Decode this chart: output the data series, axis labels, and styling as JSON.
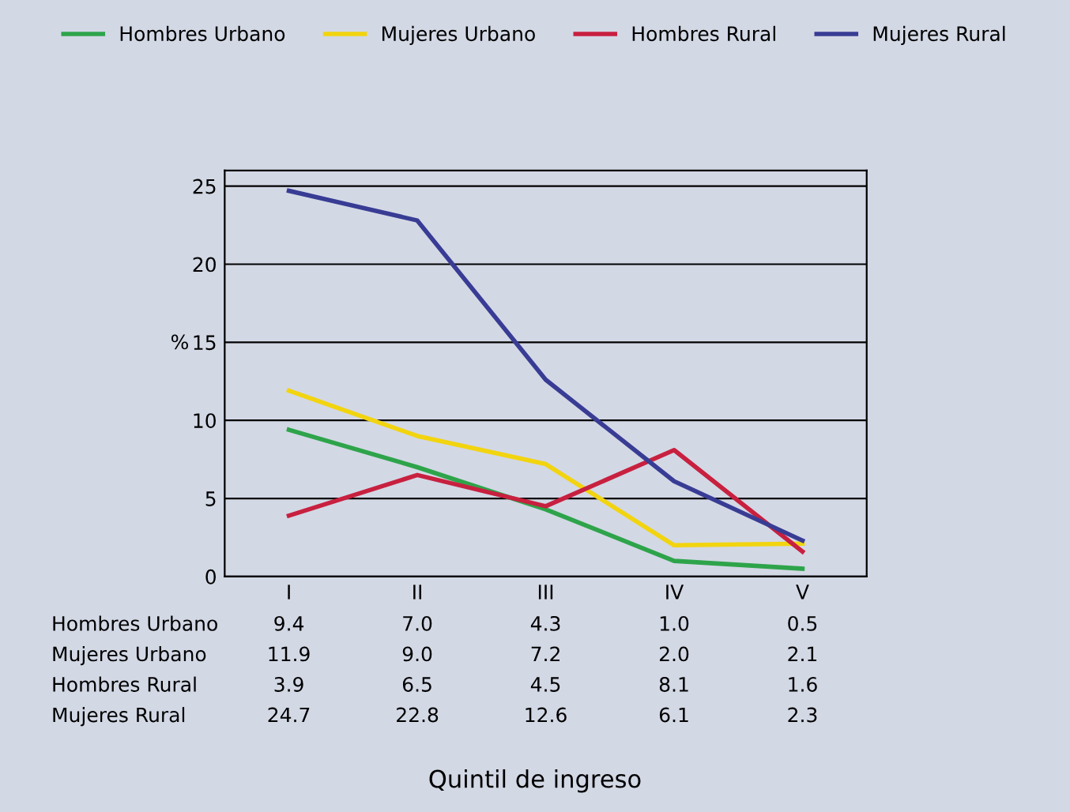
{
  "chart_data": {
    "type": "line",
    "ylabel": "%",
    "annotations": [
      "Quintil de ingreso"
    ],
    "categories": [
      "I",
      "II",
      "III",
      "IV",
      "V"
    ],
    "series": [
      {
        "name": "Hombres Urbano",
        "color": "#2ea44a",
        "values": [
          9.4,
          7.0,
          4.3,
          1.0,
          0.5
        ],
        "value_labels": [
          "9.4",
          "7.0",
          "4.3",
          "1.0",
          "0.5"
        ]
      },
      {
        "name": "Mujeres Urbano",
        "color": "#f2d40f",
        "values": [
          11.9,
          9.0,
          7.2,
          2.0,
          2.1
        ],
        "value_labels": [
          "11.9",
          "9.0",
          "7.2",
          "2.0",
          "2.1"
        ]
      },
      {
        "name": "Hombres Rural",
        "color": "#c8203f",
        "values": [
          3.9,
          6.5,
          4.5,
          8.1,
          1.6
        ],
        "value_labels": [
          "3.9",
          "6.5",
          "4.5",
          "8.1",
          "1.6"
        ]
      },
      {
        "name": "Mujeres Rural",
        "color": "#383c94",
        "values": [
          24.7,
          22.8,
          12.6,
          6.1,
          2.3
        ],
        "value_labels": [
          "24.7",
          "22.8",
          "12.6",
          "6.1",
          "2.3"
        ]
      }
    ],
    "ylim": [
      0,
      26
    ],
    "yticks": [
      0,
      5,
      10,
      15,
      20,
      25
    ],
    "grid": "y",
    "legend": "top"
  }
}
